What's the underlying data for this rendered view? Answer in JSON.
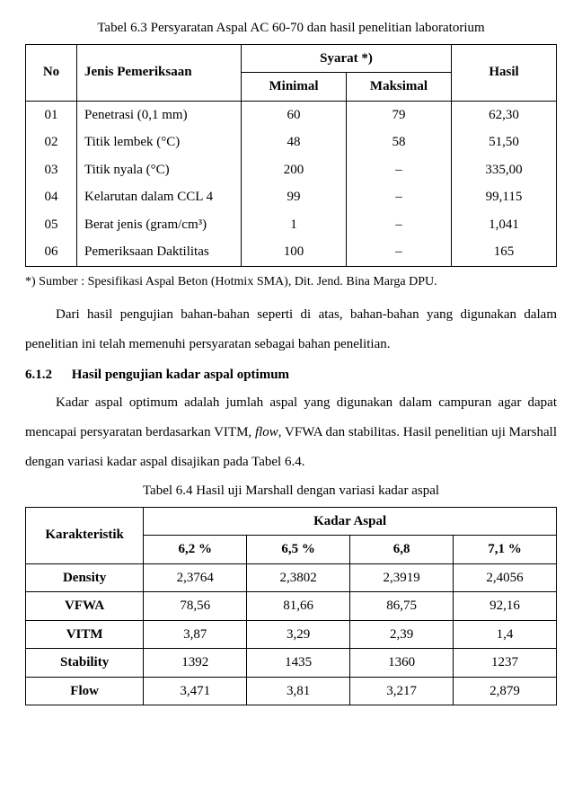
{
  "table1": {
    "caption": "Tabel 6.3 Persyaratan Aspal AC 60-70 dan hasil penelitian laboratorium",
    "headers": {
      "no": "No",
      "jenis": "Jenis Pemeriksaan",
      "syarat": "Syarat  *)",
      "minimal": "Minimal",
      "maksimal": "Maksimal",
      "hasil": "Hasil"
    },
    "rows": [
      {
        "no": "01",
        "jenis": "Penetrasi  (0,1 mm)",
        "min": "60",
        "max": "79",
        "hasil": "62,30"
      },
      {
        "no": "02",
        "jenis": "Titik lembek  (°C)",
        "min": "48",
        "max": "58",
        "hasil": "51,50"
      },
      {
        "no": "03",
        "jenis": "Titik nyala  (°C)",
        "min": "200",
        "max": "–",
        "hasil": "335,00"
      },
      {
        "no": "04",
        "jenis": "Kelarutan dalam CCL 4",
        "min": "99",
        "max": "–",
        "hasil": "99,115"
      },
      {
        "no": "05",
        "jenis": "Berat jenis  (gram/cm³)",
        "min": "1",
        "max": "–",
        "hasil": "1,041"
      },
      {
        "no": "06",
        "jenis": "Pemeriksaan Daktilitas",
        "min": "100",
        "max": "–",
        "hasil": "165"
      }
    ],
    "footnote": "*) Sumber : Spesifikasi Aspal Beton (Hotmix SMA), Dit. Jend. Bina Marga DPU."
  },
  "para1": "Dari hasil pengujian bahan-bahan seperti di atas, bahan-bahan yang digunakan dalam penelitian ini telah memenuhi persyaratan sebagai bahan penelitian.",
  "section": {
    "num": "6.1.2",
    "title": "Hasil pengujian kadar aspal optimum"
  },
  "para2a": "Kadar aspal optimum adalah jumlah aspal yang digunakan dalam campuran agar dapat mencapai persyaratan berdasarkan VITM, ",
  "para2b": "flow",
  "para2c": ", VFWA dan stabilitas. Hasil penelitian uji Marshall dengan variasi kadar aspal disajikan pada Tabel 6.4.",
  "table2": {
    "caption": "Tabel 6.4 Hasil uji Marshall dengan variasi kadar aspal",
    "headers": {
      "kar": "Karakteristik",
      "kadar": "Kadar Aspal",
      "c1": "6,2 %",
      "c2": "6,5 %",
      "c3": "6,8",
      "c4": "7,1 %"
    },
    "rows": [
      {
        "k": "Density",
        "v1": "2,3764",
        "v2": "2,3802",
        "v3": "2,3919",
        "v4": "2,4056"
      },
      {
        "k": "VFWA",
        "v1": "78,56",
        "v2": "81,66",
        "v3": "86,75",
        "v4": "92,16"
      },
      {
        "k": "VITM",
        "v1": "3,87",
        "v2": "3,29",
        "v3": "2,39",
        "v4": "1,4"
      },
      {
        "k": "Stability",
        "v1": "1392",
        "v2": "1435",
        "v3": "1360",
        "v4": "1237"
      },
      {
        "k": "Flow",
        "v1": "3,471",
        "v2": "3,81",
        "v3": "3,217",
        "v4": "2,879"
      }
    ]
  }
}
